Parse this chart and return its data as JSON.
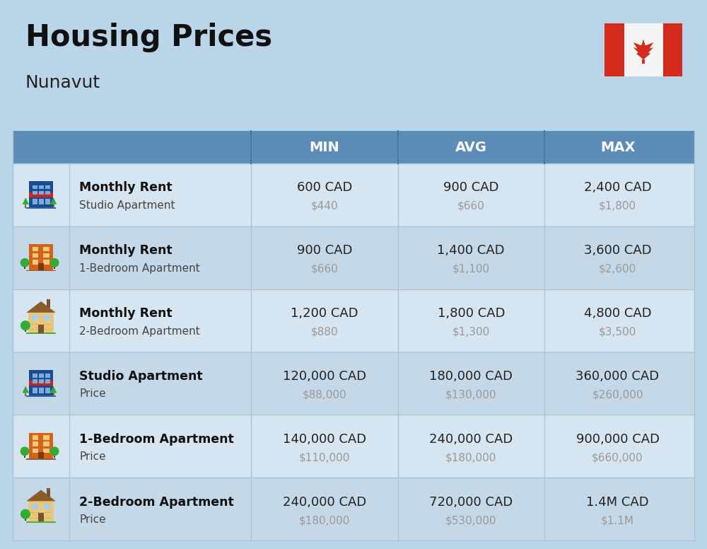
{
  "title": "Housing Prices",
  "subtitle": "Nunavut",
  "bg_color": "#bad4e8",
  "header_bg_color": "#5b8db8",
  "header_text_color": "#ffffff",
  "row_bg_light": "#d6e5f0",
  "row_bg_dark": "#c5d8e8",
  "col_headers": [
    "MIN",
    "AVG",
    "MAX"
  ],
  "rows": [
    {
      "bold_label": "Monthly Rent",
      "sub_label": "Studio Apartment",
      "min_cad": "600 CAD",
      "min_usd": "$440",
      "avg_cad": "900 CAD",
      "avg_usd": "$660",
      "max_cad": "2,400 CAD",
      "max_usd": "$1,800",
      "icon_type": "studio_blue"
    },
    {
      "bold_label": "Monthly Rent",
      "sub_label": "1-Bedroom Apartment",
      "min_cad": "900 CAD",
      "min_usd": "$660",
      "avg_cad": "1,400 CAD",
      "avg_usd": "$1,100",
      "max_cad": "3,600 CAD",
      "max_usd": "$2,600",
      "icon_type": "apartment_orange"
    },
    {
      "bold_label": "Monthly Rent",
      "sub_label": "2-Bedroom Apartment",
      "min_cad": "1,200 CAD",
      "min_usd": "$880",
      "avg_cad": "1,800 CAD",
      "avg_usd": "$1,300",
      "max_cad": "4,800 CAD",
      "max_usd": "$3,500",
      "icon_type": "house_beige"
    },
    {
      "bold_label": "Studio Apartment",
      "sub_label": "Price",
      "min_cad": "120,000 CAD",
      "min_usd": "$88,000",
      "avg_cad": "180,000 CAD",
      "avg_usd": "$130,000",
      "max_cad": "360,000 CAD",
      "max_usd": "$260,000",
      "icon_type": "studio_blue"
    },
    {
      "bold_label": "1-Bedroom Apartment",
      "sub_label": "Price",
      "min_cad": "140,000 CAD",
      "min_usd": "$110,000",
      "avg_cad": "240,000 CAD",
      "avg_usd": "$180,000",
      "max_cad": "900,000 CAD",
      "max_usd": "$660,000",
      "icon_type": "apartment_orange"
    },
    {
      "bold_label": "2-Bedroom Apartment",
      "sub_label": "Price",
      "min_cad": "240,000 CAD",
      "min_usd": "$180,000",
      "avg_cad": "720,000 CAD",
      "avg_usd": "$530,000",
      "max_cad": "1.4M CAD",
      "max_usd": "$1.1M",
      "icon_type": "house_beige"
    }
  ],
  "divider_color": "#a8c4d8",
  "usd_color": "#999999",
  "text_color": "#222222",
  "label_bold_color": "#111111",
  "label_sub_color": "#444444",
  "flag_red": "#d52b1e",
  "flag_white": "#f5f5f5"
}
